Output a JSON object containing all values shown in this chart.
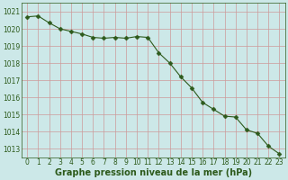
{
  "x": [
    0,
    1,
    2,
    3,
    4,
    5,
    6,
    7,
    8,
    9,
    10,
    11,
    12,
    13,
    14,
    15,
    16,
    17,
    18,
    19,
    20,
    21,
    22,
    23
  ],
  "y": [
    1020.7,
    1020.75,
    1020.35,
    1020.0,
    1019.85,
    1019.7,
    1019.5,
    1019.45,
    1019.5,
    1019.45,
    1019.55,
    1019.5,
    1018.6,
    1018.0,
    1017.2,
    1016.55,
    1015.7,
    1015.3,
    1014.9,
    1014.85,
    1014.1,
    1013.9,
    1013.15,
    1012.7
  ],
  "line_color": "#2d5a1b",
  "marker": "D",
  "marker_size": 2.5,
  "bg_color": "#cce8e8",
  "grid_color": "#cc9999",
  "ylim": [
    1012.5,
    1021.5
  ],
  "xlim": [
    -0.5,
    23.5
  ],
  "yticks": [
    1013,
    1014,
    1015,
    1016,
    1017,
    1018,
    1019,
    1020,
    1021
  ],
  "xticks": [
    0,
    1,
    2,
    3,
    4,
    5,
    6,
    7,
    8,
    9,
    10,
    11,
    12,
    13,
    14,
    15,
    16,
    17,
    18,
    19,
    20,
    21,
    22,
    23
  ],
  "xlabel": "Graphe pression niveau de la mer (hPa)",
  "xlabel_color": "#2d5a1b",
  "tick_fontsize": 5.5,
  "label_fontsize": 7.0,
  "linewidth": 0.8
}
